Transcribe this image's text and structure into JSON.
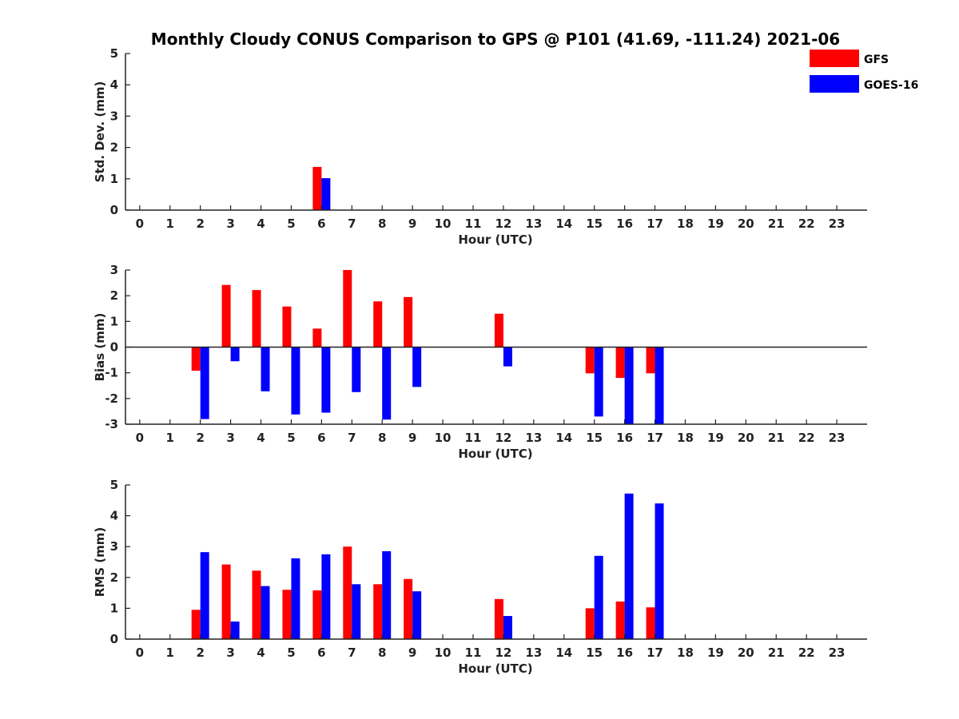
{
  "title": "Monthly Cloudy CONUS Comparison to GPS @ P101 (41.69, -111.24) 2021-06",
  "legend": {
    "placement": "top-right",
    "entries": [
      {
        "name": "GFS",
        "color": "#ff0000"
      },
      {
        "name": "GOES-16",
        "color": "#0000ff"
      }
    ]
  },
  "chart_data": [
    {
      "type": "bar",
      "ylabel": "Std. Dev. (mm)",
      "xlabel": "Hour (UTC)",
      "ylim": [
        0,
        5
      ],
      "yticks": [
        0,
        1,
        2,
        3,
        4,
        5
      ],
      "zero_line": false,
      "categories": [
        0,
        1,
        2,
        3,
        4,
        5,
        6,
        7,
        8,
        9,
        10,
        11,
        12,
        13,
        14,
        15,
        16,
        17,
        18,
        19,
        20,
        21,
        22,
        23
      ],
      "series": [
        {
          "name": "GFS",
          "color": "#ff0000",
          "values": [
            null,
            null,
            null,
            null,
            null,
            null,
            1.38,
            null,
            null,
            null,
            null,
            null,
            null,
            null,
            null,
            null,
            null,
            null,
            null,
            null,
            null,
            null,
            null,
            null
          ]
        },
        {
          "name": "GOES-16",
          "color": "#0000ff",
          "values": [
            null,
            null,
            null,
            null,
            null,
            null,
            1.02,
            null,
            null,
            null,
            null,
            null,
            null,
            null,
            null,
            null,
            null,
            null,
            null,
            null,
            null,
            null,
            null,
            null
          ]
        }
      ]
    },
    {
      "type": "bar",
      "ylabel": "Bias (mm)",
      "xlabel": "Hour (UTC)",
      "ylim": [
        -3,
        3
      ],
      "yticks": [
        -3,
        -2,
        -1,
        0,
        1,
        2,
        3
      ],
      "zero_line": true,
      "categories": [
        0,
        1,
        2,
        3,
        4,
        5,
        6,
        7,
        8,
        9,
        10,
        11,
        12,
        13,
        14,
        15,
        16,
        17,
        18,
        19,
        20,
        21,
        22,
        23
      ],
      "series": [
        {
          "name": "GFS",
          "color": "#ff0000",
          "values": [
            null,
            null,
            -0.92,
            2.42,
            2.22,
            1.58,
            0.72,
            3.0,
            1.78,
            1.95,
            null,
            null,
            1.3,
            null,
            null,
            -1.02,
            -1.2,
            -1.02,
            null,
            null,
            null,
            null,
            null,
            null
          ]
        },
        {
          "name": "GOES-16",
          "color": "#0000ff",
          "values": [
            null,
            null,
            -2.8,
            -0.55,
            -1.72,
            -2.62,
            -2.55,
            -1.75,
            -2.82,
            -1.55,
            null,
            null,
            -0.75,
            null,
            null,
            -2.7,
            -3.0,
            -3.0,
            null,
            null,
            null,
            null,
            null,
            null
          ]
        }
      ]
    },
    {
      "type": "bar",
      "ylabel": "RMS (mm)",
      "xlabel": "Hour (UTC)",
      "ylim": [
        0,
        5
      ],
      "yticks": [
        0,
        1,
        2,
        3,
        4,
        5
      ],
      "zero_line": false,
      "categories": [
        0,
        1,
        2,
        3,
        4,
        5,
        6,
        7,
        8,
        9,
        10,
        11,
        12,
        13,
        14,
        15,
        16,
        17,
        18,
        19,
        20,
        21,
        22,
        23
      ],
      "series": [
        {
          "name": "GFS",
          "color": "#ff0000",
          "values": [
            null,
            null,
            0.95,
            2.42,
            2.22,
            1.6,
            1.58,
            3.0,
            1.78,
            1.95,
            null,
            null,
            1.3,
            null,
            null,
            1.0,
            1.22,
            1.03,
            null,
            null,
            null,
            null,
            null,
            null
          ]
        },
        {
          "name": "GOES-16",
          "color": "#0000ff",
          "values": [
            null,
            null,
            2.82,
            0.57,
            1.72,
            2.62,
            2.75,
            1.78,
            2.85,
            1.55,
            null,
            null,
            0.75,
            null,
            null,
            2.7,
            4.72,
            4.4,
            null,
            null,
            null,
            null,
            null,
            null
          ]
        }
      ]
    }
  ]
}
